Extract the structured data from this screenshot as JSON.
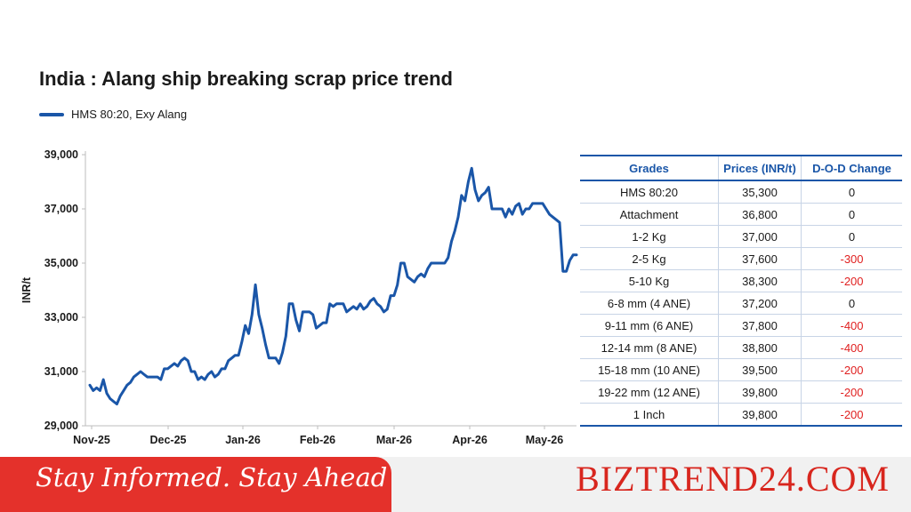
{
  "chart_data": {
    "type": "line",
    "title": "India : Alang ship breaking scrap price trend",
    "ylabel": "INR/t",
    "xlabel": "",
    "ylim": [
      29000,
      39000
    ],
    "yticks": [
      29000,
      31000,
      33000,
      35000,
      37000,
      39000
    ],
    "ytick_labels": [
      "29,000",
      "31,000",
      "33,000",
      "35,000",
      "37,000",
      "39,000"
    ],
    "xtick_labels": [
      "Nov-25",
      "Dec-25",
      "Jan-26",
      "Feb-26",
      "Mar-26",
      "Apr-26",
      "May-26"
    ],
    "grid": false,
    "legend_position": "top-left",
    "series": [
      {
        "name": "HMS 80:20, Exy Alang",
        "color": "#1a56a8",
        "values": [
          30500,
          30300,
          30400,
          30300,
          30700,
          30200,
          30000,
          29900,
          29800,
          30100,
          30300,
          30500,
          30600,
          30800,
          30900,
          31000,
          30900,
          30800,
          30800,
          30800,
          30800,
          30700,
          31100,
          31100,
          31200,
          31300,
          31200,
          31400,
          31500,
          31400,
          31000,
          31000,
          30700,
          30800,
          30700,
          30900,
          31000,
          30800,
          30900,
          31100,
          31100,
          31400,
          31500,
          31600,
          31600,
          32100,
          32700,
          32400,
          33100,
          34200,
          33100,
          32600,
          32000,
          31500,
          31500,
          31500,
          31300,
          31700,
          32300,
          33500,
          33500,
          32900,
          32500,
          33200,
          33200,
          33200,
          33100,
          32600,
          32700,
          32800,
          32800,
          33500,
          33400,
          33500,
          33500,
          33500,
          33200,
          33300,
          33400,
          33300,
          33500,
          33300,
          33400,
          33600,
          33700,
          33500,
          33400,
          33200,
          33300,
          33800,
          33800,
          34200,
          35000,
          35000,
          34500,
          34400,
          34300,
          34500,
          34600,
          34500,
          34800,
          35000,
          35000,
          35000,
          35000,
          35000,
          35200,
          35800,
          36200,
          36700,
          37500,
          37300,
          38000,
          38500,
          37700,
          37300,
          37500,
          37600,
          37800,
          37000,
          37000,
          37000,
          37000,
          36700,
          37000,
          36800,
          37100,
          37200,
          36800,
          37000,
          37000,
          37200,
          37200,
          37200,
          37200,
          37000,
          36800,
          36700,
          36600,
          36500,
          34700,
          34700,
          35100,
          35300,
          35300
        ]
      }
    ],
    "table": {
      "headers": [
        "Grades",
        "Prices (INR/t)",
        "D-O-D Change"
      ],
      "rows": [
        [
          "HMS 80:20",
          "35,300",
          "0"
        ],
        [
          "Attachment",
          "36,800",
          "0"
        ],
        [
          "1-2 Kg",
          "37,000",
          "0"
        ],
        [
          "2-5 Kg",
          "37,600",
          "-300"
        ],
        [
          "5-10 Kg",
          "38,300",
          "-200"
        ],
        [
          "6-8 mm (4 ANE)",
          "37,200",
          "0"
        ],
        [
          "9-11 mm (6 ANE)",
          "37,800",
          "-400"
        ],
        [
          "12-14 mm (8 ANE)",
          "38,800",
          "-400"
        ],
        [
          "15-18 mm (10 ANE)",
          "39,500",
          "-200"
        ],
        [
          "19-22 mm (12 ANE)",
          "39,800",
          "-200"
        ],
        [
          "1 Inch",
          "39,800",
          "-200"
        ]
      ]
    }
  },
  "footer": {
    "tagline": "Stay Informed. Stay Ahead",
    "brand": "BIZTREND24.COM"
  },
  "colors": {
    "line": "#1a56a8",
    "negative": "#e02020",
    "banner": "#e4312b",
    "brand": "#d8261e"
  }
}
